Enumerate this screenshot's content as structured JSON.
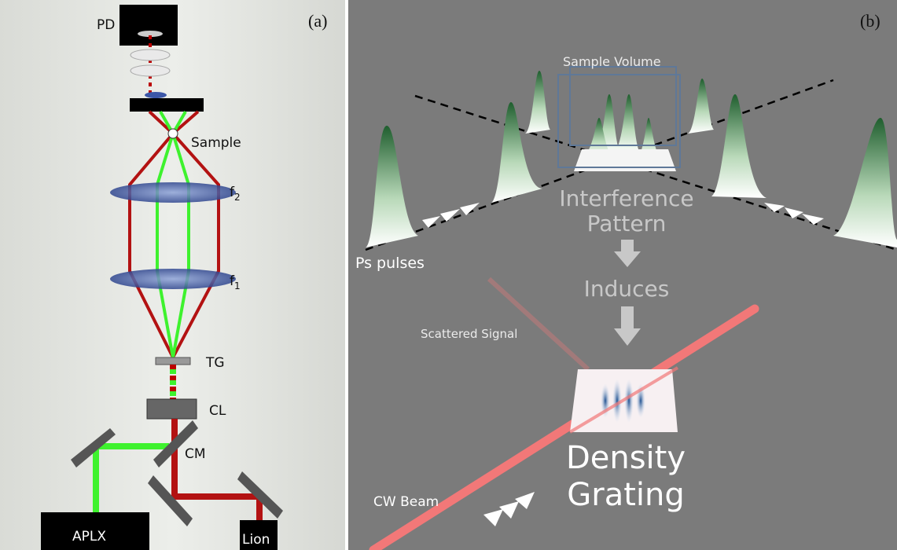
{
  "panel_a": {
    "label": "(a)",
    "components": {
      "pd": "PD",
      "sample": "Sample",
      "f2": {
        "text": "f",
        "sub": "2"
      },
      "f1": {
        "text": "f",
        "sub": "1"
      },
      "tg": "TG",
      "cl": "CL",
      "cm": "CM",
      "aplx": "APLX",
      "lion": "Lion"
    }
  },
  "panel_b": {
    "label": "(b)",
    "sample_volume": "Sample Volume",
    "interference_pattern": [
      "Interference",
      "Pattern"
    ],
    "induces": "Induces",
    "scattered_signal": "Scattered Signal",
    "ps_pulses": "Ps pulses",
    "cw_beam": "CW Beam",
    "density_grating": [
      "Density",
      "Grating"
    ]
  }
}
